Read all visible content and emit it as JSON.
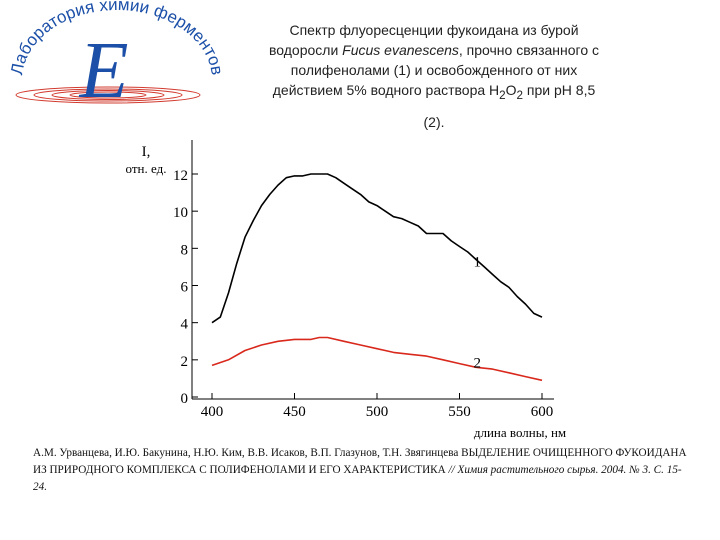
{
  "logo": {
    "text": "Лаборатория химии ферментов",
    "letter": "E",
    "colors": {
      "text": "#1b4fa8",
      "letter": "#1b4fa8",
      "swirl": "#d23a2e"
    }
  },
  "title": {
    "line1": "Спектр флуоресценции фукоидана из бурой",
    "line2_a": "водоросли ",
    "line2_species": "Fucus evanescens",
    "line2_b": ", прочно связанного с",
    "line3": "полифенолами (1) и освобожденного от них",
    "line4_a": "действием 5% водного раствора H",
    "line4_sub1": "2",
    "line4_b": "O",
    "line4_sub2": "2",
    "line4_c": " при pH 8,5",
    "line5": "(2)."
  },
  "chart_data": {
    "type": "line",
    "ylabel_line1": "I,",
    "ylabel_line2": "отн. ед.",
    "xlabel": "длина волны, нм",
    "xlim": [
      400,
      600
    ],
    "ylim": [
      0,
      12
    ],
    "xticks": [
      "400",
      "450",
      "500",
      "550",
      "600"
    ],
    "yticks": [
      "0",
      "2",
      "4",
      "6",
      "8",
      "10",
      "12"
    ],
    "grid": false,
    "series": [
      {
        "name": "1",
        "color": "#000000",
        "x": [
          400,
          405,
          410,
          415,
          420,
          425,
          430,
          435,
          440,
          445,
          450,
          455,
          460,
          465,
          470,
          475,
          480,
          485,
          490,
          495,
          500,
          505,
          510,
          515,
          520,
          525,
          530,
          535,
          540,
          545,
          550,
          555,
          560,
          565,
          570,
          575,
          580,
          585,
          590,
          595,
          600
        ],
        "values": [
          4.0,
          4.3,
          5.6,
          7.2,
          8.6,
          9.5,
          10.3,
          10.9,
          11.4,
          11.8,
          11.9,
          11.9,
          12.0,
          12.0,
          12.0,
          11.8,
          11.5,
          11.2,
          10.9,
          10.5,
          10.3,
          10.0,
          9.7,
          9.6,
          9.4,
          9.2,
          8.8,
          8.8,
          8.8,
          8.4,
          8.1,
          7.8,
          7.4,
          7.0,
          6.6,
          6.2,
          5.9,
          5.4,
          5.0,
          4.5,
          4.3
        ]
      },
      {
        "name": "2",
        "color": "#d9281c",
        "x": [
          400,
          410,
          420,
          430,
          440,
          450,
          460,
          465,
          470,
          480,
          490,
          500,
          510,
          520,
          530,
          540,
          550,
          560,
          570,
          580,
          590,
          600
        ],
        "values": [
          1.7,
          2.0,
          2.5,
          2.8,
          3.0,
          3.1,
          3.1,
          3.2,
          3.2,
          3.0,
          2.8,
          2.6,
          2.4,
          2.3,
          2.2,
          2.0,
          1.8,
          1.6,
          1.5,
          1.3,
          1.1,
          0.9
        ]
      }
    ]
  },
  "citation": {
    "authors_title": "А.М. Урванцева, И.Ю. Бакунина, Н.Ю. Ким, В.В. Исаков, В.П. Глазунов, Т.Н. Звягинцева ВЫДЕЛЕНИЕ ОЧИЩЕННОГО ФУКОИДАНА ИЗ ПРИРОДНОГО КОМПЛЕКСА С ПОЛИФЕНОЛАМИ И ЕГО ХАРАКТЕРИСТИКА",
    "journal": " // Химия растительного сырья. 2004. № 3. С. 15-24."
  }
}
